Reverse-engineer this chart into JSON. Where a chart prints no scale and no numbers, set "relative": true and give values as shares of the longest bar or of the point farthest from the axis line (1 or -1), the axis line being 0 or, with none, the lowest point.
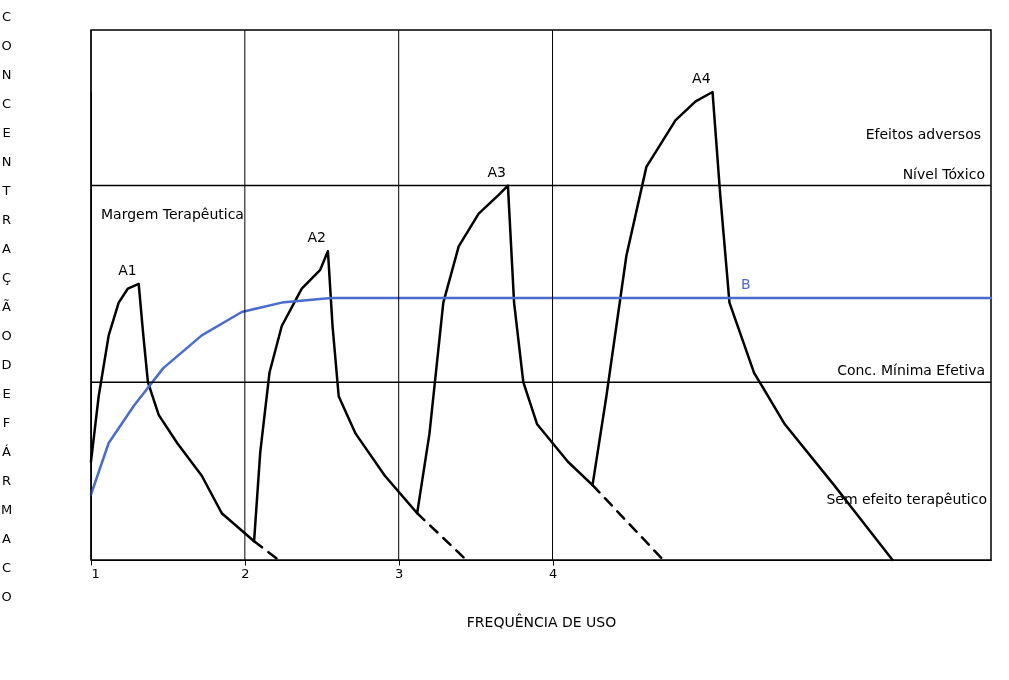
{
  "chart_data": {
    "type": "line",
    "relative": true,
    "xlabel": "FREQUÊNCIA DE USO",
    "ylabel": "CONCENTRAÇÃO DE FÁRMACO",
    "xlim": [
      1,
      6.85
    ],
    "xticks": [
      1,
      2,
      3,
      4
    ],
    "grid": "x",
    "marker": "none",
    "series": [
      {
        "color": "#000000",
        "line_style": "solid",
        "x": [
          1,
          1.05,
          1.115,
          1.18,
          1.24,
          1.31,
          1.34,
          1.37,
          1.44,
          1.56,
          1.72,
          1.85,
          2.06,
          2.1,
          2.16,
          2.24,
          2.37,
          2.49,
          2.54,
          2.57,
          2.61,
          2.72,
          2.91,
          3.12,
          3.2,
          3.29,
          3.39,
          3.52,
          3.65,
          3.71,
          3.75,
          3.81,
          3.9,
          4.1,
          4.26,
          4.35,
          4.48,
          4.61,
          4.8,
          4.93,
          5.04,
          5.09,
          5.15,
          5.31,
          5.51,
          5.83,
          6.21
        ],
        "values": [
          0.21,
          0.35,
          0.48,
          0.55,
          0.58,
          0.59,
          0.48,
          0.38,
          0.31,
          0.25,
          0.18,
          0.1,
          0.04,
          0.23,
          0.4,
          0.5,
          0.58,
          0.62,
          0.66,
          0.5,
          0.35,
          0.27,
          0.18,
          0.1,
          0.27,
          0.55,
          0.67,
          0.74,
          0.78,
          0.8,
          0.55,
          0.38,
          0.29,
          0.21,
          0.16,
          0.35,
          0.65,
          0.84,
          0.94,
          0.98,
          1.0,
          0.78,
          0.55,
          0.4,
          0.29,
          0.16,
          0
        ]
      },
      {
        "color": "#000000",
        "line_style": "dashed",
        "x": [
          2.06,
          2.22
        ],
        "values": [
          0.04,
          0
        ]
      },
      {
        "color": "#000000",
        "line_style": "dashed",
        "x": [
          3.12,
          3.44
        ],
        "values": [
          0.1,
          0
        ]
      },
      {
        "color": "#000000",
        "line_style": "dashed",
        "x": [
          4.26,
          4.72
        ],
        "values": [
          0.16,
          0
        ]
      },
      {
        "color": "#4a6ccc",
        "line_style": "solid",
        "x": [
          1,
          1.115,
          1.28,
          1.47,
          1.72,
          1.98,
          2.24,
          2.56,
          5.3,
          6.85
        ],
        "values": [
          0.14,
          0.25,
          0.33,
          0.41,
          0.48,
          0.53,
          0.55,
          0.56,
          0.56,
          0.56
        ]
      }
    ],
    "ref_lines": [
      {
        "axis": "y",
        "value": 0.8,
        "label": "Nível Tóxico",
        "color": "#000000"
      },
      {
        "axis": "y",
        "value": 0.38,
        "label": "Conc. Mínima Efetiva",
        "color": "#000000"
      }
    ],
    "annotations": [
      {
        "text": "A1",
        "x": 1.31,
        "y": 0.59
      },
      {
        "text": "A2",
        "x": 2.54,
        "y": 0.66
      },
      {
        "text": "A3",
        "x": 3.71,
        "y": 0.8
      },
      {
        "text": "A4",
        "x": 5.04,
        "y": 1.0
      },
      {
        "text": "B",
        "x": 5.3,
        "y": 0.56
      },
      "Efeitos adversos",
      "Margem Terapêutica",
      "Sem efeito terapêutico"
    ]
  }
}
